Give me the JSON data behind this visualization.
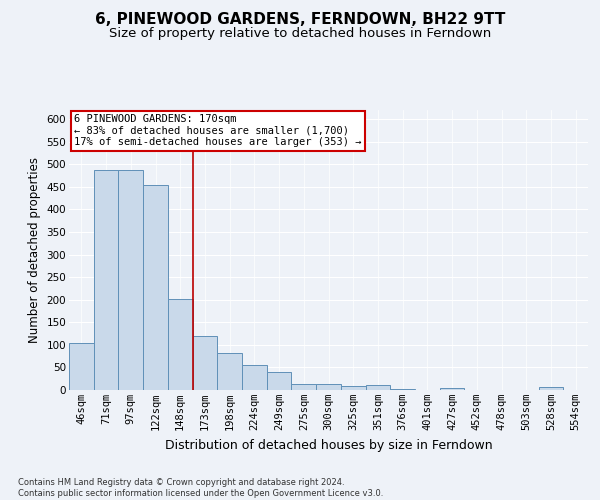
{
  "title": "6, PINEWOOD GARDENS, FERNDOWN, BH22 9TT",
  "subtitle": "Size of property relative to detached houses in Ferndown",
  "xlabel": "Distribution of detached houses by size in Ferndown",
  "ylabel": "Number of detached properties",
  "categories": [
    "46sqm",
    "71sqm",
    "97sqm",
    "122sqm",
    "148sqm",
    "173sqm",
    "198sqm",
    "224sqm",
    "249sqm",
    "275sqm",
    "300sqm",
    "325sqm",
    "351sqm",
    "376sqm",
    "401sqm",
    "427sqm",
    "452sqm",
    "478sqm",
    "503sqm",
    "528sqm",
    "554sqm"
  ],
  "values": [
    105,
    487,
    487,
    453,
    202,
    120,
    83,
    55,
    40,
    14,
    14,
    8,
    10,
    2,
    0,
    5,
    0,
    0,
    0,
    7,
    0
  ],
  "bar_color": "#c9d9ea",
  "bar_edge_color": "#6090b8",
  "vline_x": 4.5,
  "vline_color": "#bb0000",
  "annotation_text": "6 PINEWOOD GARDENS: 170sqm\n← 83% of detached houses are smaller (1,700)\n17% of semi-detached houses are larger (353) →",
  "annotation_box_facecolor": "#ffffff",
  "annotation_box_edgecolor": "#cc0000",
  "ylim": [
    0,
    620
  ],
  "yticks": [
    0,
    50,
    100,
    150,
    200,
    250,
    300,
    350,
    400,
    450,
    500,
    550,
    600
  ],
  "title_fontsize": 11,
  "subtitle_fontsize": 9.5,
  "xlabel_fontsize": 9,
  "ylabel_fontsize": 8.5,
  "tick_fontsize": 7.5,
  "annot_fontsize": 7.5,
  "footer_line1": "Contains HM Land Registry data © Crown copyright and database right 2024.",
  "footer_line2": "Contains public sector information licensed under the Open Government Licence v3.0.",
  "footer_fontsize": 6.0,
  "background_color": "#eef2f8",
  "plot_background": "#eef2f8"
}
